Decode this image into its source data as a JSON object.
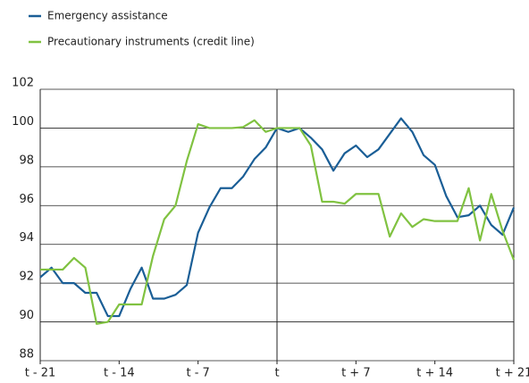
{
  "chart_data": {
    "type": "line",
    "x": [
      -21,
      -20,
      -19,
      -18,
      -17,
      -16,
      -15,
      -14,
      -13,
      -12,
      -11,
      -10,
      -9,
      -8,
      -7,
      -6,
      -5,
      -4,
      -3,
      -2,
      -1,
      0,
      1,
      2,
      3,
      4,
      5,
      6,
      7,
      8,
      9,
      10,
      11,
      12,
      13,
      14,
      15,
      16,
      17,
      18,
      19,
      20,
      21
    ],
    "series": [
      {
        "name": "Emergency assistance",
        "color": "#1a5e96",
        "values": [
          92.3,
          92.8,
          92.0,
          92.0,
          91.5,
          91.5,
          90.3,
          90.3,
          91.7,
          92.8,
          91.2,
          91.2,
          91.4,
          91.9,
          94.6,
          95.9,
          96.9,
          96.9,
          97.5,
          98.4,
          99.0,
          100,
          99.8,
          100,
          99.5,
          98.9,
          97.8,
          98.7,
          99.1,
          98.5,
          98.9,
          99.7,
          100.5,
          99.8,
          98.6,
          98.1,
          96.5,
          95.4,
          95.5,
          96.0,
          95.0,
          94.5,
          95.9
        ]
      },
      {
        "name": "Precautionary instruments (credit line)",
        "color": "#80c241",
        "values": [
          92.7,
          92.7,
          92.7,
          93.3,
          92.8,
          89.9,
          90.0,
          90.9,
          90.9,
          90.9,
          93.4,
          95.3,
          96.0,
          98.3,
          100.2,
          100.0,
          100.0,
          100.0,
          100.05,
          100.4,
          99.8,
          100,
          100,
          100,
          99.1,
          96.2,
          96.2,
          96.1,
          96.6,
          96.6,
          96.6,
          94.4,
          95.6,
          94.9,
          95.3,
          95.2,
          95.2,
          95.2,
          96.9,
          94.2,
          96.6,
          94.7,
          93.2
        ]
      }
    ],
    "xlim": [
      -21,
      21
    ],
    "xticks": [
      {
        "value": -21,
        "label": "t - 21"
      },
      {
        "value": -14,
        "label": "t - 14"
      },
      {
        "value": -7,
        "label": "t - 7"
      },
      {
        "value": 0,
        "label": "t"
      },
      {
        "value": 7,
        "label": "t + 7"
      },
      {
        "value": 14,
        "label": "t + 14"
      },
      {
        "value": 21,
        "label": "t + 21"
      }
    ],
    "ylim": [
      88,
      102
    ],
    "yticks": [
      88,
      90,
      92,
      94,
      96,
      98,
      100,
      102
    ],
    "grid": true,
    "vline": 0,
    "legend": "top-left"
  }
}
